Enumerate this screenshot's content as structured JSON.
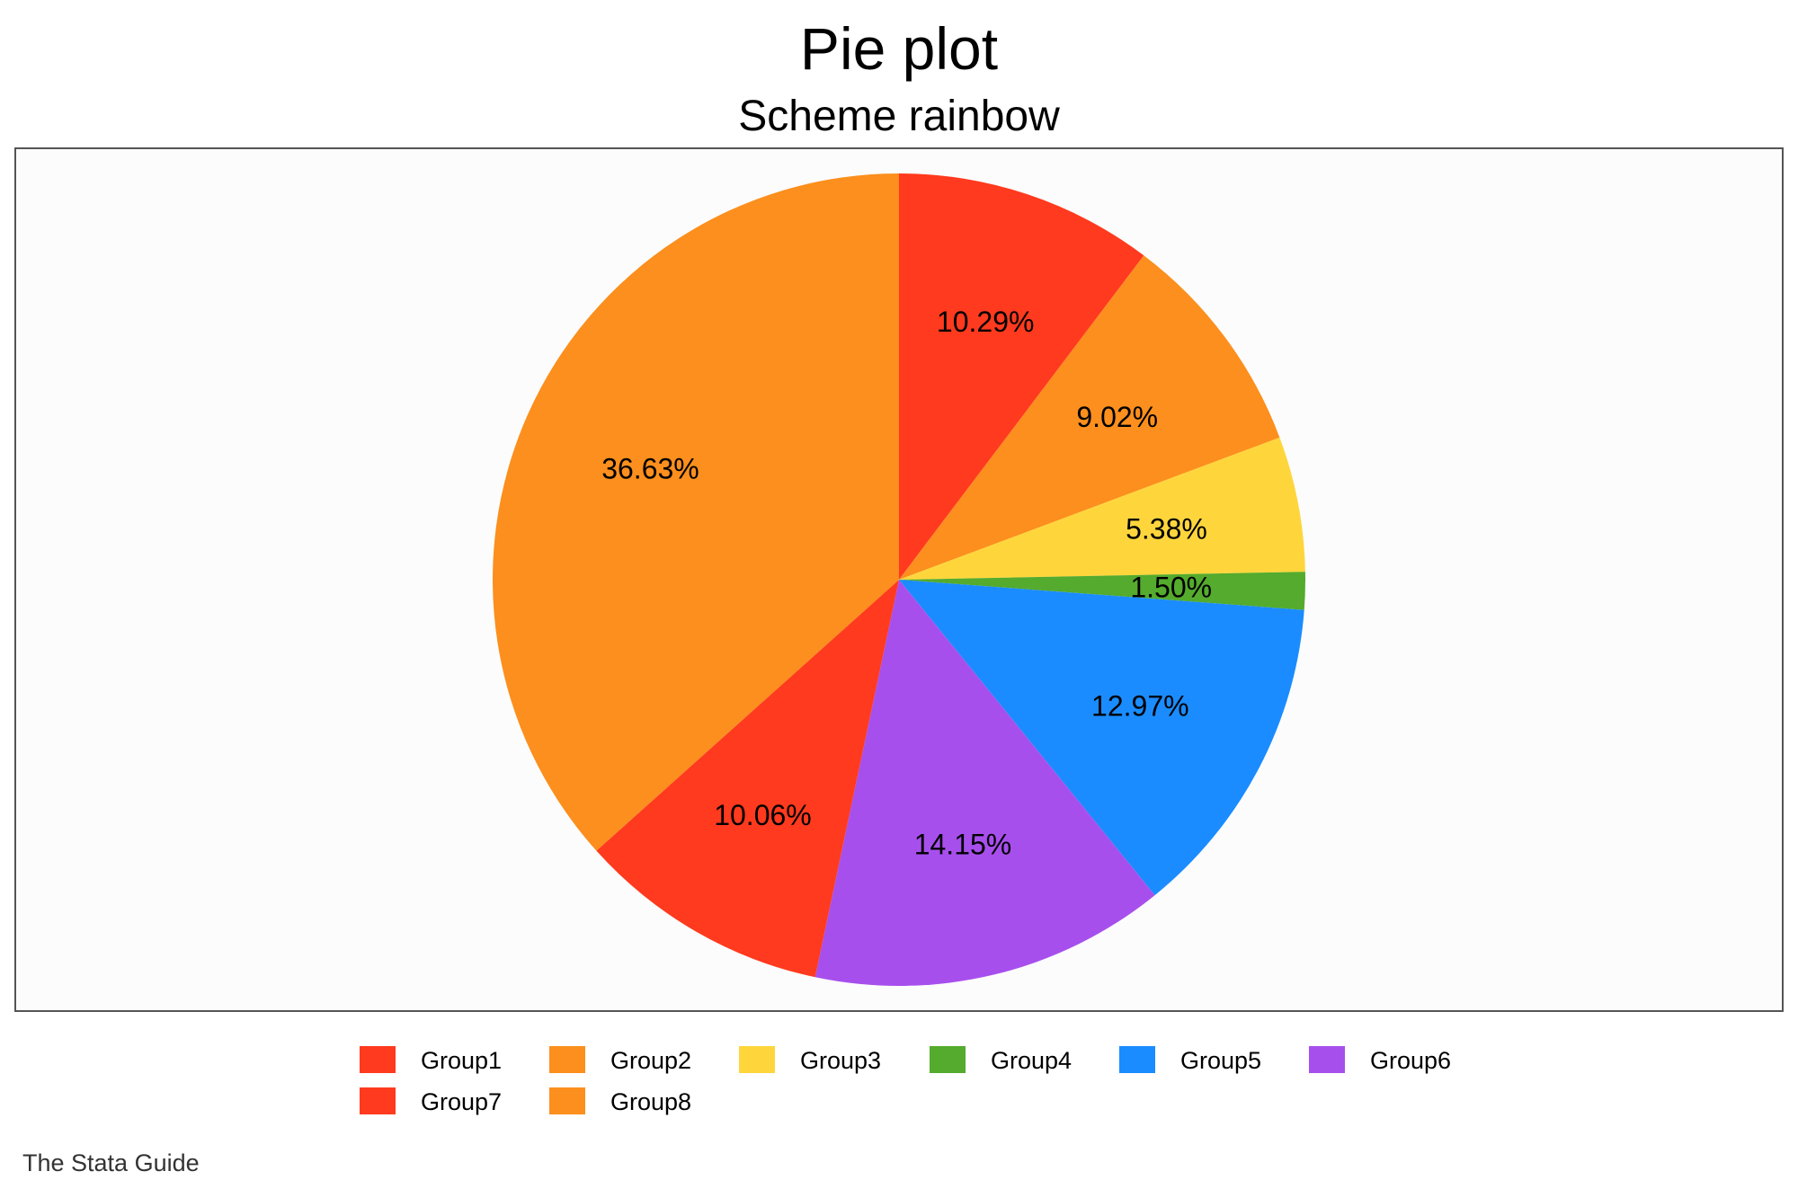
{
  "chart_data": {
    "type": "pie",
    "title": "Pie plot",
    "subtitle": "Scheme rainbow",
    "note": "The Stata Guide",
    "direction": "clockwise",
    "start": "top",
    "legend_position": "bottom",
    "slices": [
      {
        "name": "Group1",
        "value": 10.29,
        "label": "10.29%",
        "color": "#ff3a1e"
      },
      {
        "name": "Group2",
        "value": 9.02,
        "label": "9.02%",
        "color": "#fc8f1d"
      },
      {
        "name": "Group3",
        "value": 5.38,
        "label": "5.38%",
        "color": "#fed63c"
      },
      {
        "name": "Group4",
        "value": 1.5,
        "label": "1.50%",
        "color": "#54ab2d"
      },
      {
        "name": "Group5",
        "value": 12.97,
        "label": "12.97%",
        "color": "#1a8cff"
      },
      {
        "name": "Group6",
        "value": 14.15,
        "label": "14.15%",
        "color": "#a74fed"
      },
      {
        "name": "Group7",
        "value": 10.06,
        "label": "10.06%",
        "color": "#ff3a1e"
      },
      {
        "name": "Group8",
        "value": 36.63,
        "label": "36.63%",
        "color": "#fc8f1d"
      }
    ],
    "plot_background": "#fcfcfc",
    "frame_color": "#555555"
  }
}
